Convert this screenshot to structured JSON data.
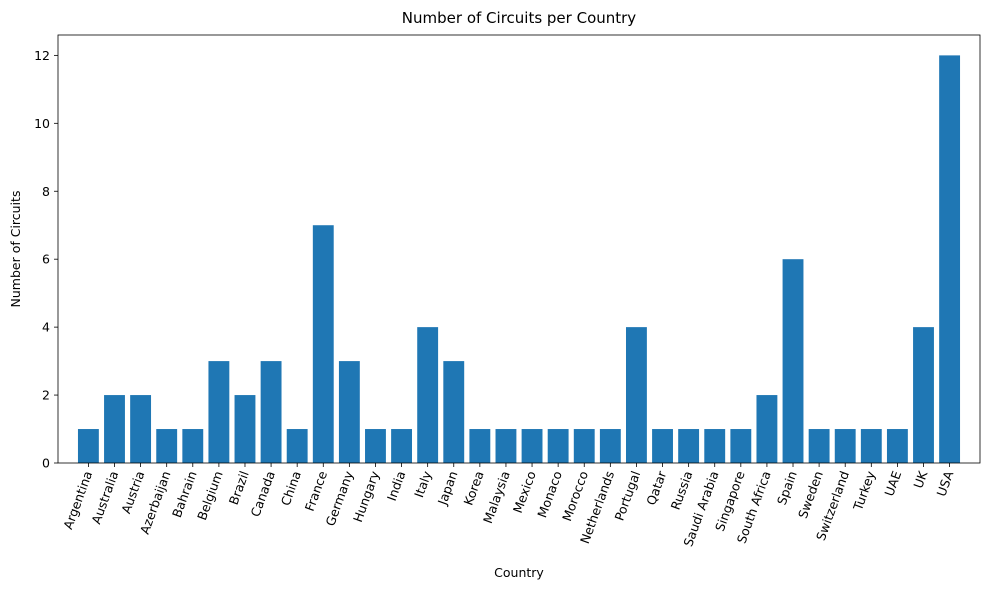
{
  "chart_data": {
    "type": "bar",
    "title": "Number of Circuits per Country",
    "xlabel": "Country",
    "ylabel": "Number of Circuits",
    "categories": [
      "Argentina",
      "Australia",
      "Austria",
      "Azerbaijan",
      "Bahrain",
      "Belgium",
      "Brazil",
      "Canada",
      "China",
      "France",
      "Germany",
      "Hungary",
      "India",
      "Italy",
      "Japan",
      "Korea",
      "Malaysia",
      "Mexico",
      "Monaco",
      "Morocco",
      "Netherlands",
      "Portugal",
      "Qatar",
      "Russia",
      "Saudi Arabia",
      "Singapore",
      "South Africa",
      "Spain",
      "Sweden",
      "Switzerland",
      "Turkey",
      "UAE",
      "UK",
      "USA"
    ],
    "values": [
      1,
      2,
      2,
      1,
      1,
      3,
      2,
      3,
      1,
      7,
      3,
      1,
      1,
      4,
      3,
      1,
      1,
      1,
      1,
      1,
      1,
      4,
      1,
      1,
      1,
      1,
      2,
      6,
      1,
      1,
      1,
      1,
      4,
      12
    ],
    "ylim": [
      0,
      12.6
    ],
    "yticks": [
      0,
      2,
      4,
      6,
      8,
      10,
      12
    ],
    "grid": false,
    "bar_color": "#1f77b4",
    "x_tick_rotation": -70
  }
}
